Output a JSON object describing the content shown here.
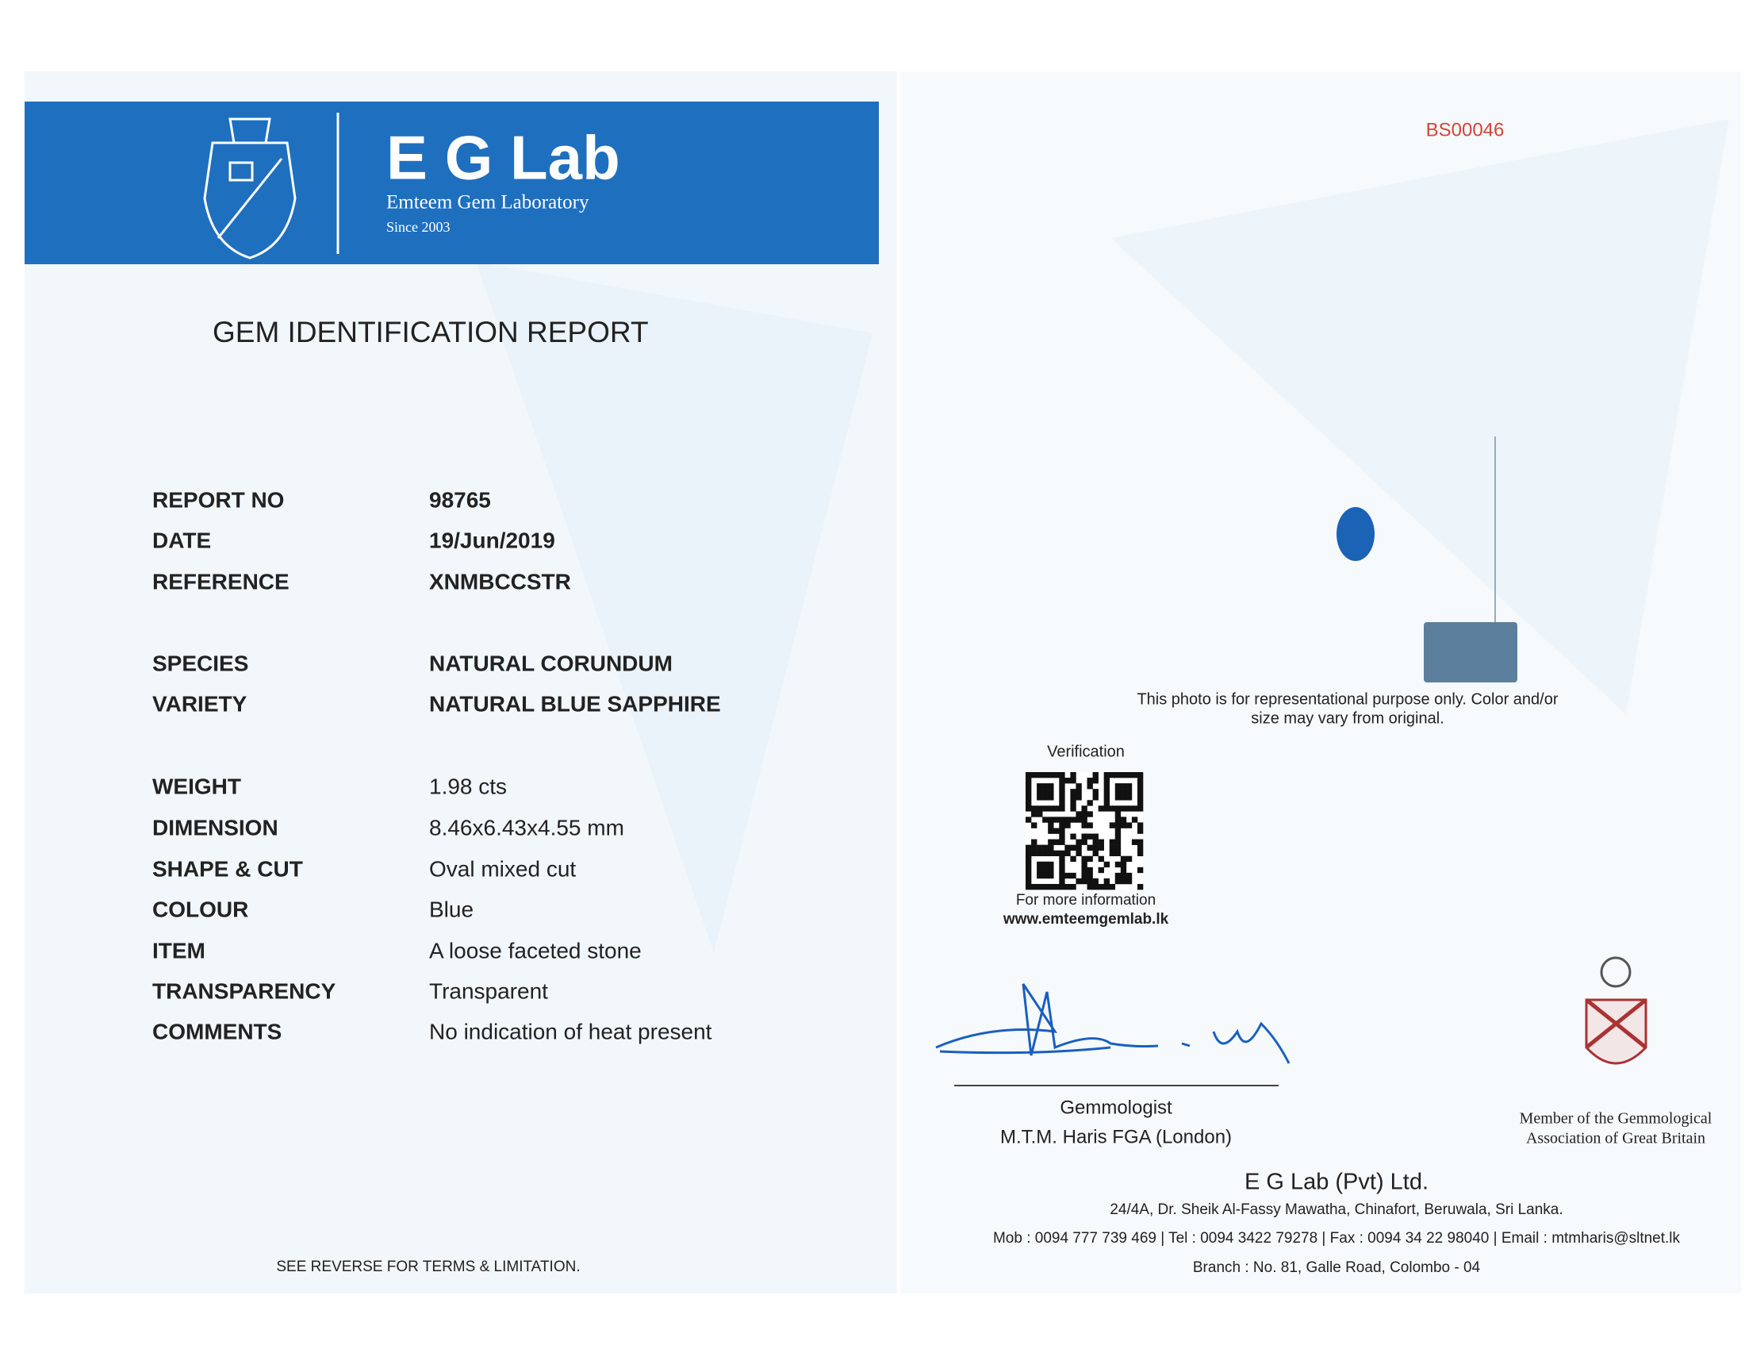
{
  "header": {
    "brand": "E G Lab",
    "subtitle": "Emteem Gem Laboratory",
    "since": "Since 2003"
  },
  "report_title": "GEM IDENTIFICATION REPORT",
  "fields": [
    [
      "REPORT NO",
      "98765"
    ],
    [
      "DATE",
      "19/Jun/2019"
    ],
    [
      "REFERENCE",
      "XNMBCCSTR"
    ],
    [
      "SPECIES",
      "NATURAL CORUNDUM"
    ],
    [
      "VARIETY",
      "NATURAL BLUE SAPPHIRE"
    ],
    [
      "WEIGHT",
      "1.98 cts"
    ],
    [
      "DIMENSION",
      "8.46x6.43x4.55 mm"
    ],
    [
      "SHAPE & CUT",
      "Oval mixed cut"
    ],
    [
      "COLOUR",
      "Blue"
    ],
    [
      "ITEM",
      "A loose faceted stone"
    ],
    [
      "TRANSPARENCY",
      "Transparent"
    ],
    [
      "COMMENTS",
      "No indication of heat present"
    ]
  ],
  "footer_note": "SEE REVERSE FOR TERMS & LIMITATION.",
  "serial": "BS00046",
  "photo_note": [
    "This photo is for representational purpose only. Color and/or",
    "size may vary from original."
  ],
  "verification": {
    "title": "Verification",
    "caption": [
      "For more information",
      "www.emteemgemlab.lk"
    ]
  },
  "signatory": {
    "role": "Gemmologist",
    "name": "M.T.M. Haris FGA (London)"
  },
  "membership": [
    "Member of the Gemmological",
    "Association of Great Britain"
  ],
  "company": {
    "name": "E G Lab (Pvt) Ltd.",
    "address": "24/4A, Dr. Sheik Al-Fassy Mawatha, Chinafort, Beruwala, Sri Lanka.",
    "contact": "Mob : 0094 777 739 469 | Tel : 0094 3422 79278 | Fax : 0094 34 22 98040 | Email : mtmharis@sltnet.lk",
    "branch": "Branch : No. 81, Galle Road, Colombo - 04"
  }
}
